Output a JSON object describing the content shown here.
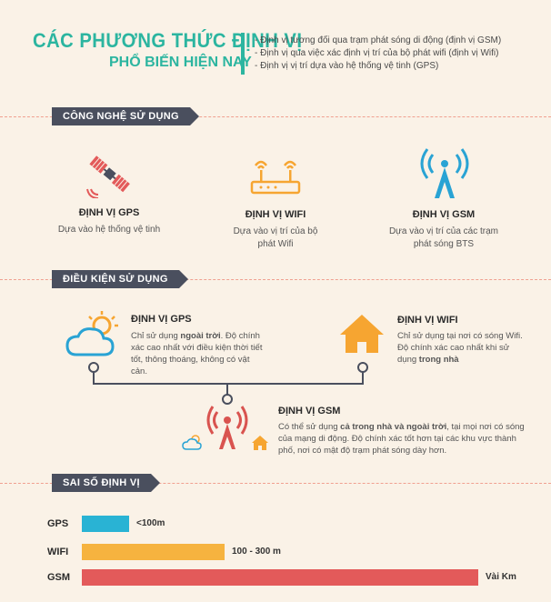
{
  "header": {
    "title_line1": "CÁC PHƯƠNG THỨC ĐỊNH VỊ",
    "title_line2": "PHỔ BIẾN HIỆN NAY",
    "bullets": [
      "- Định vị tương đối qua trạm phát sóng di động (định vị GSM)",
      "- Định vị qua việc xác định vị trí của bộ phát wifi (định vị Wifi)",
      "- Định vị vị trí dựa vào hệ thống vệ tinh (GPS)"
    ]
  },
  "sections": {
    "technology": "CÔNG NGHỆ SỬ DỤNG",
    "conditions": "ĐIỀU KIỆN SỬ DỤNG",
    "error": "SAI SỐ ĐỊNH VỊ"
  },
  "technology": [
    {
      "icon": "satellite-icon",
      "title": "ĐỊNH VỊ GPS",
      "desc": [
        "Dựa vào hệ thống vệ tinh"
      ]
    },
    {
      "icon": "wifi-router-icon",
      "title": "ĐỊNH VỊ WIFI",
      "desc": [
        "Dựa vào vị trí của bộ",
        "phát Wifi"
      ]
    },
    {
      "icon": "cell-tower-icon",
      "title": "ĐỊNH VỊ GSM",
      "desc": [
        "Dựa vào vị trí của các trạm",
        "phát sóng BTS"
      ]
    }
  ],
  "conditions": {
    "gps": {
      "title": "ĐỊNH VỊ GPS",
      "pre": "Chỉ sử dụng ",
      "bold": "ngoài trời",
      "post": ". Độ chính xác cao nhất với điều kiện thời tiết tốt, thông thoáng, không có vật cản."
    },
    "wifi": {
      "title": "ĐỊNH VỊ WIFI",
      "pre": "Chỉ sử dụng tại nơi có sóng Wifi. Độ chính xác cao nhất khi sử dụng ",
      "bold": "trong nhà",
      "post": ""
    },
    "gsm": {
      "title": "ĐỊNH VỊ GSM",
      "pre": "Có thể sử dụng ",
      "bold": "cả trong nhà và ngoài trời",
      "post": ", tại mọi nơi có sóng của mạng di động. Độ chính xác tốt hơn tại các khu vực thành phố, nơi có mật độ trạm phát sóng dày hơn."
    }
  },
  "errors": [
    {
      "label": "GPS",
      "value": "<100m",
      "color": "#29b3d4",
      "length": 0.12
    },
    {
      "label": "WIFI",
      "value": "100 - 300 m",
      "color": "#f6b33f",
      "length": 0.36
    },
    {
      "label": "GSM",
      "value": "Vài Km",
      "color": "#e35a5a",
      "length": 1.0
    }
  ],
  "colors": {
    "teal": "#2cb5a0",
    "dark": "#4a4f5e",
    "orange": "#f6a531",
    "blue": "#29a3d4",
    "red": "#d9534f"
  }
}
